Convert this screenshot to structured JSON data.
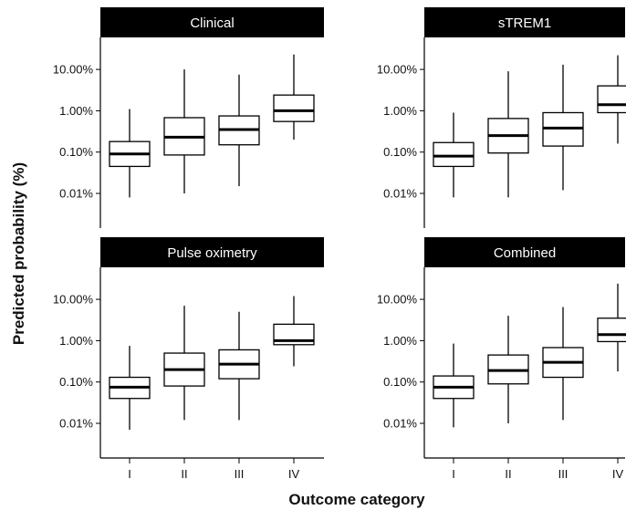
{
  "chart_data": {
    "type": "box",
    "xlabel": "Outcome category",
    "ylabel": "Predicted probability (%)",
    "yscale": "log",
    "ylim": [
      0.005,
      40
    ],
    "yticks": [
      0.01,
      0.1,
      1,
      10
    ],
    "ytick_labels": [
      "0.01%",
      "0.10%",
      "1.00%",
      "10.00%"
    ],
    "categories": [
      "I",
      "II",
      "III",
      "IV"
    ],
    "colors": {
      "strip_fill": "#000000",
      "strip_text": "#ffffff",
      "box_stroke": "#000000",
      "median": "#000000"
    },
    "panels": [
      {
        "title": "Clinical",
        "boxes": [
          {
            "category": "I",
            "whisker_low": 0.008,
            "q1": 0.045,
            "median": 0.09,
            "q3": 0.18,
            "whisker_high": 1.1
          },
          {
            "category": "II",
            "whisker_low": 0.01,
            "q1": 0.085,
            "median": 0.23,
            "q3": 0.68,
            "whisker_high": 10
          },
          {
            "category": "III",
            "whisker_low": 0.015,
            "q1": 0.15,
            "median": 0.35,
            "q3": 0.75,
            "whisker_high": 7.5
          },
          {
            "category": "IV",
            "whisker_low": 0.2,
            "q1": 0.55,
            "median": 1.0,
            "q3": 2.4,
            "whisker_high": 23
          }
        ]
      },
      {
        "title": "sTREM1",
        "boxes": [
          {
            "category": "I",
            "whisker_low": 0.008,
            "q1": 0.045,
            "median": 0.08,
            "q3": 0.17,
            "whisker_high": 0.9
          },
          {
            "category": "II",
            "whisker_low": 0.008,
            "q1": 0.095,
            "median": 0.25,
            "q3": 0.65,
            "whisker_high": 9
          },
          {
            "category": "III",
            "whisker_low": 0.012,
            "q1": 0.14,
            "median": 0.38,
            "q3": 0.9,
            "whisker_high": 13
          },
          {
            "category": "IV",
            "whisker_low": 0.16,
            "q1": 0.9,
            "median": 1.4,
            "q3": 4.0,
            "whisker_high": 22
          }
        ]
      },
      {
        "title": "Pulse oximetry",
        "boxes": [
          {
            "category": "I",
            "whisker_low": 0.007,
            "q1": 0.04,
            "median": 0.075,
            "q3": 0.13,
            "whisker_high": 0.75
          },
          {
            "category": "II",
            "whisker_low": 0.012,
            "q1": 0.08,
            "median": 0.2,
            "q3": 0.5,
            "whisker_high": 7
          },
          {
            "category": "III",
            "whisker_low": 0.012,
            "q1": 0.12,
            "median": 0.27,
            "q3": 0.6,
            "whisker_high": 5
          },
          {
            "category": "IV",
            "whisker_low": 0.24,
            "q1": 0.8,
            "median": 1.0,
            "q3": 2.5,
            "whisker_high": 12
          }
        ]
      },
      {
        "title": "Combined",
        "boxes": [
          {
            "category": "I",
            "whisker_low": 0.008,
            "q1": 0.04,
            "median": 0.075,
            "q3": 0.14,
            "whisker_high": 0.85
          },
          {
            "category": "II",
            "whisker_low": 0.01,
            "q1": 0.09,
            "median": 0.19,
            "q3": 0.45,
            "whisker_high": 4
          },
          {
            "category": "III",
            "whisker_low": 0.012,
            "q1": 0.13,
            "median": 0.3,
            "q3": 0.68,
            "whisker_high": 6.5
          },
          {
            "category": "IV",
            "whisker_low": 0.18,
            "q1": 0.95,
            "median": 1.4,
            "q3": 3.5,
            "whisker_high": 24
          }
        ]
      }
    ]
  }
}
